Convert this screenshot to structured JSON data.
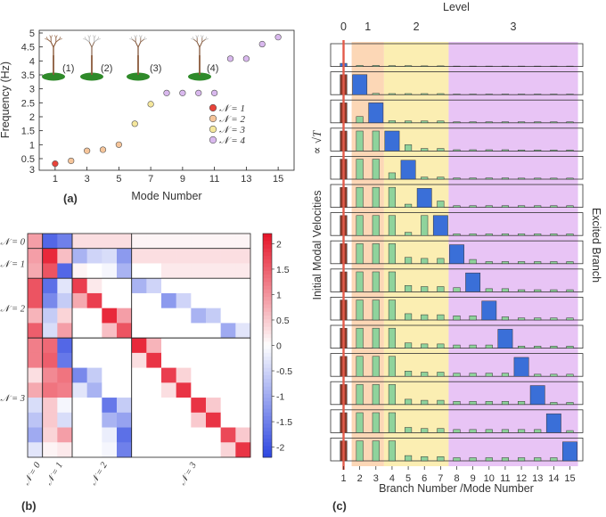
{
  "chart_data": [
    {
      "panel": "a",
      "type": "scatter",
      "panel_label": "(a)",
      "xlabel": "Mode Number",
      "ylabel": "Frequency (Hz)",
      "xlim": [
        0,
        16
      ],
      "xticks": [
        "1",
        "3",
        "5",
        "7",
        "9",
        "11",
        "13",
        "15"
      ],
      "yticks": [
        "0.5",
        "1",
        "1.5",
        "2",
        "2.5",
        "3",
        "3.5",
        "4",
        "4.5",
        "5"
      ],
      "y_bottom_label": "3",
      "ylim_scale": [
        0.18,
        5
      ],
      "colors": {
        "N1": "#e8433a",
        "N2": "#f6c59a",
        "N3": "#f5e79c",
        "N4": "#d9b8ee"
      },
      "series": [
        {
          "name": "𝒩 = 1",
          "color": "#e8433a",
          "x": [
            1
          ],
          "y": [
            0.32
          ]
        },
        {
          "name": "𝒩 = 2",
          "color": "#f6c59a",
          "x": [
            2,
            3,
            4,
            5
          ],
          "y": [
            0.42,
            0.78,
            0.82,
            1.0
          ]
        },
        {
          "name": "𝒩 = 3",
          "color": "#f5e79c",
          "x": [
            6,
            7
          ],
          "y": [
            1.75,
            2.45
          ]
        },
        {
          "name": "𝒩 = 4",
          "color": "#d9b8ee",
          "x": [
            8,
            9,
            10,
            11,
            12,
            13,
            14,
            15
          ],
          "y": [
            2.85,
            2.85,
            2.85,
            2.85,
            4.08,
            4.08,
            4.6,
            4.85
          ]
        }
      ],
      "legend": [
        "𝒩 = 1",
        "𝒩 = 2",
        "𝒩 = 3",
        "𝒩 = 4"
      ],
      "tree_labels": [
        "(1)",
        "(2)",
        "(3)",
        "(4)"
      ]
    },
    {
      "panel": "b",
      "type": "heatmap",
      "panel_label": "(b)",
      "row_labels": [
        "𝒩 = 0",
        "𝒩 = 1",
        "𝒩 = 2",
        "𝒩 = 3"
      ],
      "col_labels": [
        "𝒩 = 0",
        "𝒩 = 1",
        "𝒩 = 2",
        "𝒩 = 3"
      ],
      "groups": [
        1,
        2,
        4,
        8
      ],
      "colorbar_ticks": [
        "2",
        "1.5",
        "1",
        "0.5",
        "0",
        "-0.5",
        "-1",
        "-1.5",
        "-2"
      ],
      "vmin": -2.2,
      "vmax": 2.2,
      "matrix": [
        [
          0.9,
          -1.8,
          -1.5,
          0.3,
          0.3,
          0.3,
          0.3,
          0.1,
          0.1,
          0.1,
          0.1,
          0.1,
          0.1,
          0.1,
          0.1
        ],
        [
          0.9,
          2.0,
          0.6,
          -0.9,
          -0.5,
          -0.4,
          -1.2,
          0.3,
          0.3,
          0.3,
          0.3,
          0.3,
          0.3,
          0.3,
          0.3
        ],
        [
          0.8,
          1.6,
          -1.8,
          0.1,
          0.0,
          -0.1,
          -0.9,
          0.0,
          0.0,
          0.2,
          0.2,
          0.2,
          0.2,
          0.2,
          0.2
        ],
        [
          1.6,
          -1.7,
          -0.3,
          1.8,
          0.2,
          0.0,
          0.0,
          -0.9,
          -0.5,
          0.0,
          0.0,
          0.0,
          0.0,
          0.0,
          0.0
        ],
        [
          1.6,
          -1.4,
          -0.6,
          0.8,
          1.8,
          0.0,
          0.0,
          0.0,
          0.0,
          -1.2,
          -0.5,
          0.0,
          0.0,
          0.0,
          0.0
        ],
        [
          0.7,
          -0.6,
          0.4,
          0.0,
          0.0,
          2.0,
          0.9,
          0.0,
          0.0,
          0.0,
          0.0,
          -0.9,
          -0.6,
          0.0,
          0.0
        ],
        [
          1.5,
          -0.4,
          0.9,
          0.0,
          0.0,
          0.6,
          1.6,
          0.0,
          0.0,
          0.0,
          0.0,
          0.0,
          0.0,
          -1.0,
          -0.3
        ],
        [
          1.2,
          1.4,
          -1.8,
          0.0,
          0.0,
          0.0,
          0.0,
          2.0,
          0.7,
          0.0,
          0.0,
          0.0,
          0.0,
          0.0,
          0.0
        ],
        [
          1.2,
          1.5,
          -1.6,
          0.0,
          0.0,
          0.0,
          0.0,
          0.3,
          1.9,
          0.0,
          0.0,
          0.0,
          0.0,
          0.0,
          0.0
        ],
        [
          0.3,
          1.1,
          1.3,
          -1.4,
          -0.6,
          0.0,
          0.0,
          0.0,
          0.0,
          1.8,
          0.4,
          0.0,
          0.0,
          0.0,
          0.0
        ],
        [
          0.8,
          1.3,
          1.2,
          -0.3,
          -0.9,
          0.0,
          0.0,
          0.0,
          0.0,
          0.3,
          1.9,
          0.0,
          0.0,
          0.0,
          0.0
        ],
        [
          -0.4,
          0.5,
          -0.1,
          0.0,
          0.0,
          -1.6,
          -0.6,
          0.0,
          0.0,
          0.0,
          0.0,
          1.9,
          0.5,
          0.0,
          0.0
        ],
        [
          -0.7,
          0.5,
          -0.4,
          0.0,
          0.0,
          -0.9,
          -1.1,
          0.0,
          0.0,
          0.0,
          0.0,
          0.5,
          1.9,
          0.0,
          0.0
        ],
        [
          -1.0,
          0.4,
          0.9,
          0.0,
          0.0,
          -0.2,
          -1.7,
          0.0,
          0.0,
          0.0,
          0.0,
          0.0,
          0.0,
          1.7,
          0.5
        ],
        [
          -0.3,
          0.1,
          0.2,
          0.0,
          0.0,
          -0.1,
          -1.5,
          0.0,
          0.0,
          0.0,
          0.0,
          0.0,
          0.0,
          0.4,
          1.9
        ]
      ]
    },
    {
      "panel": "c",
      "type": "bar",
      "panel_label": "(c)",
      "title": "Level",
      "level_labels": [
        "0",
        "1",
        "2",
        "3"
      ],
      "level_ranges": [
        [
          1,
          1
        ],
        [
          2,
          3
        ],
        [
          4,
          7
        ],
        [
          8,
          15
        ]
      ],
      "level_colors": [
        "#ffffff",
        "#fcd7b6",
        "#fbeeb2",
        "#e8c4f5"
      ],
      "xlabel": "Branch Number /Mode Number",
      "ylabel_left": "Initial Modal Velocities",
      "ylabel_prop": "∝ √T",
      "ylabel_right": "Excited Branch",
      "categories": [
        "1",
        "2",
        "3",
        "4",
        "5",
        "6",
        "7",
        "8",
        "9",
        "10",
        "11",
        "12",
        "13",
        "14",
        "15"
      ],
      "bar_colors": {
        "root": "#8b3a2b",
        "green": "#8fd39c",
        "blue": "#3a6fd8",
        "line": "#e35a4a"
      },
      "rows": [
        {
          "excited": 1,
          "values": [
            0.15,
            0.05,
            0.05,
            0.04,
            0.04,
            0.03,
            0.03,
            0.02,
            0.02,
            0.02,
            0.02,
            0.02,
            0.02,
            0.02,
            0.02
          ]
        },
        {
          "excited": 2,
          "values": [
            0.95,
            0.95,
            0.06,
            0.05,
            0.05,
            0.05,
            0.05,
            0.03,
            0.03,
            0.03,
            0.03,
            0.03,
            0.03,
            0.03,
            0.03
          ]
        },
        {
          "excited": 3,
          "values": [
            0.95,
            0.3,
            0.95,
            0.1,
            0.09,
            0.09,
            0.09,
            0.05,
            0.05,
            0.05,
            0.05,
            0.05,
            0.05,
            0.05,
            0.05
          ]
        },
        {
          "excited": 4,
          "values": [
            0.95,
            0.95,
            0.95,
            0.95,
            0.3,
            0.12,
            0.12,
            0.06,
            0.06,
            0.06,
            0.06,
            0.05,
            0.05,
            0.05,
            0.05
          ]
        },
        {
          "excited": 5,
          "values": [
            0.95,
            0.95,
            0.95,
            0.3,
            0.9,
            0.1,
            0.1,
            0.06,
            0.06,
            0.06,
            0.06,
            0.05,
            0.05,
            0.05,
            0.05
          ]
        },
        {
          "excited": 6,
          "values": [
            0.95,
            0.95,
            0.95,
            0.95,
            0.15,
            0.9,
            0.3,
            0.08,
            0.08,
            0.08,
            0.08,
            0.08,
            0.08,
            0.08,
            0.08
          ]
        },
        {
          "excited": 7,
          "values": [
            0.95,
            0.95,
            0.95,
            0.95,
            0.15,
            0.95,
            0.95,
            0.08,
            0.08,
            0.08,
            0.08,
            0.08,
            0.08,
            0.08,
            0.08
          ]
        },
        {
          "excited": 8,
          "values": [
            0.95,
            0.95,
            0.95,
            0.95,
            0.3,
            0.25,
            0.25,
            0.9,
            0.2,
            0.1,
            0.1,
            0.1,
            0.1,
            0.1,
            0.1
          ]
        },
        {
          "excited": 9,
          "values": [
            0.95,
            0.95,
            0.95,
            0.95,
            0.3,
            0.25,
            0.25,
            0.2,
            0.9,
            0.15,
            0.15,
            0.1,
            0.1,
            0.1,
            0.1
          ]
        },
        {
          "excited": 10,
          "values": [
            0.95,
            0.95,
            0.95,
            0.95,
            0.3,
            0.25,
            0.25,
            0.2,
            0.2,
            0.9,
            0.15,
            0.1,
            0.1,
            0.1,
            0.1
          ]
        },
        {
          "excited": 11,
          "values": [
            0.95,
            0.95,
            0.95,
            0.95,
            0.25,
            0.2,
            0.2,
            0.15,
            0.15,
            0.15,
            0.9,
            0.1,
            0.1,
            0.1,
            0.1
          ]
        },
        {
          "excited": 12,
          "values": [
            0.95,
            0.95,
            0.95,
            0.95,
            0.25,
            0.2,
            0.2,
            0.15,
            0.15,
            0.15,
            0.15,
            0.9,
            0.1,
            0.1,
            0.1
          ]
        },
        {
          "excited": 13,
          "values": [
            0.95,
            0.95,
            0.95,
            0.95,
            0.25,
            0.2,
            0.2,
            0.15,
            0.15,
            0.15,
            0.15,
            0.15,
            0.9,
            0.1,
            0.1
          ]
        },
        {
          "excited": 14,
          "values": [
            0.95,
            0.95,
            0.95,
            0.95,
            0.25,
            0.2,
            0.2,
            0.15,
            0.15,
            0.15,
            0.15,
            0.15,
            0.15,
            0.9,
            0.1
          ]
        },
        {
          "excited": 15,
          "values": [
            0.95,
            0.95,
            0.95,
            0.95,
            0.25,
            0.2,
            0.2,
            0.15,
            0.15,
            0.15,
            0.15,
            0.15,
            0.15,
            0.15,
            0.9
          ]
        }
      ]
    }
  ]
}
